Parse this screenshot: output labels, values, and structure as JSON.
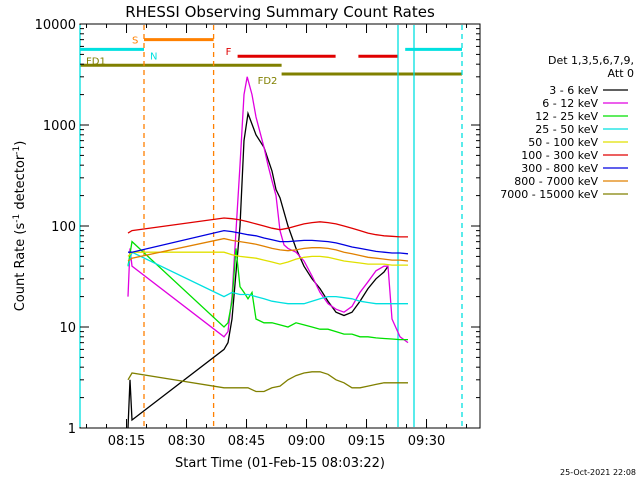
{
  "chart_data": {
    "type": "line",
    "title": "RHESSI Observing Summary Count Rates",
    "xlabel": "Start Time (01-Feb-15 08:03:22)",
    "ylabel": "Count Rate (s⁻¹ detector⁻¹)",
    "ylabel_parts": {
      "main": "Count Rate (s",
      "sup1": "-1",
      "mid": " detector",
      "sup2": "-1",
      "end": ")"
    },
    "footer": "25-Oct-2021 22:08",
    "y_scale": "log",
    "ylim": [
      1,
      10000
    ],
    "xlim_minutes": [
      0,
      100
    ],
    "yticks": [
      {
        "v": 1,
        "label": "1"
      },
      {
        "v": 10,
        "label": "10"
      },
      {
        "v": 100,
        "label": "100"
      },
      {
        "v": 1000,
        "label": "1000"
      },
      {
        "v": 10000,
        "label": "10000"
      }
    ],
    "xticks": [
      {
        "t": 11.63,
        "label": "08:15"
      },
      {
        "t": 26.63,
        "label": "08:30"
      },
      {
        "t": 41.63,
        "label": "08:45"
      },
      {
        "t": 56.63,
        "label": "09:00"
      },
      {
        "t": 71.63,
        "label": "09:15"
      },
      {
        "t": 86.63,
        "label": "09:30"
      }
    ],
    "legend_header": [
      "Det 1,3,5,6,7,9,",
      "Att 0"
    ],
    "series": [
      {
        "name": "3 - 6 keV",
        "color": "#000000",
        "points": [
          [
            12,
            1
          ],
          [
            12.5,
            3
          ],
          [
            13,
            1.2
          ],
          [
            36,
            6
          ],
          [
            37,
            7
          ],
          [
            38,
            12
          ],
          [
            40,
            100
          ],
          [
            41,
            700
          ],
          [
            42,
            1300
          ],
          [
            44,
            800
          ],
          [
            46,
            600
          ],
          [
            48,
            350
          ],
          [
            49,
            230
          ],
          [
            50,
            190
          ],
          [
            52,
            100
          ],
          [
            54,
            60
          ],
          [
            56,
            40
          ],
          [
            58,
            30
          ],
          [
            60,
            24
          ],
          [
            62,
            18
          ],
          [
            64,
            14
          ],
          [
            66,
            13
          ],
          [
            68,
            14
          ],
          [
            70,
            18
          ],
          [
            72,
            24
          ],
          [
            74,
            30
          ],
          [
            76,
            35
          ],
          [
            77,
            40
          ]
        ]
      },
      {
        "name": "6 - 12 keV",
        "color": "#e000e0",
        "points": [
          [
            12,
            20
          ],
          [
            12.5,
            60
          ],
          [
            13,
            40
          ],
          [
            36,
            8
          ],
          [
            37,
            9
          ],
          [
            38,
            20
          ],
          [
            40,
            400
          ],
          [
            41,
            2000
          ],
          [
            41.8,
            3000
          ],
          [
            43,
            2000
          ],
          [
            44,
            1200
          ],
          [
            46,
            600
          ],
          [
            47,
            400
          ],
          [
            48,
            280
          ],
          [
            49,
            200
          ],
          [
            50,
            90
          ],
          [
            51,
            65
          ],
          [
            52,
            60
          ],
          [
            54,
            55
          ],
          [
            56,
            45
          ],
          [
            58,
            32
          ],
          [
            60,
            22
          ],
          [
            62,
            17
          ],
          [
            64,
            15
          ],
          [
            66,
            14
          ],
          [
            68,
            16
          ],
          [
            70,
            22
          ],
          [
            72,
            28
          ],
          [
            74,
            36
          ],
          [
            76,
            40
          ],
          [
            77,
            40
          ],
          [
            78,
            12
          ],
          [
            80,
            8
          ],
          [
            82,
            7
          ]
        ]
      },
      {
        "name": "12 - 25 keV",
        "color": "#00e000",
        "points": [
          [
            12,
            40
          ],
          [
            13,
            70
          ],
          [
            36,
            10
          ],
          [
            37,
            11
          ],
          [
            38,
            18
          ],
          [
            39,
            60
          ],
          [
            40,
            25
          ],
          [
            41,
            22
          ],
          [
            42,
            19
          ],
          [
            43,
            22
          ],
          [
            44,
            12
          ],
          [
            46,
            11
          ],
          [
            48,
            11
          ],
          [
            50,
            10.5
          ],
          [
            52,
            10
          ],
          [
            54,
            11
          ],
          [
            56,
            10.5
          ],
          [
            58,
            10
          ],
          [
            60,
            9.5
          ],
          [
            62,
            9.5
          ],
          [
            64,
            9
          ],
          [
            66,
            8.5
          ],
          [
            68,
            8.5
          ],
          [
            70,
            8
          ],
          [
            72,
            8
          ],
          [
            74,
            7.8
          ],
          [
            76,
            7.7
          ],
          [
            78,
            7.6
          ],
          [
            80,
            7.5
          ],
          [
            82,
            7.5
          ]
        ]
      },
      {
        "name": "25 - 50 keV",
        "color": "#00e0e0",
        "points": [
          [
            12,
            40
          ],
          [
            13,
            55
          ],
          [
            36,
            20
          ],
          [
            38,
            22
          ],
          [
            40,
            21
          ],
          [
            42,
            21
          ],
          [
            44,
            20
          ],
          [
            46,
            19
          ],
          [
            48,
            18
          ],
          [
            50,
            17.5
          ],
          [
            52,
            17
          ],
          [
            54,
            17
          ],
          [
            56,
            17
          ],
          [
            58,
            18
          ],
          [
            60,
            19
          ],
          [
            62,
            20
          ],
          [
            64,
            20
          ],
          [
            66,
            19.5
          ],
          [
            68,
            19
          ],
          [
            70,
            18
          ],
          [
            72,
            17.5
          ],
          [
            74,
            17
          ],
          [
            76,
            17
          ],
          [
            78,
            17
          ],
          [
            80,
            17
          ],
          [
            82,
            17
          ]
        ]
      },
      {
        "name": "50 - 100 keV",
        "color": "#e0e000",
        "points": [
          [
            12,
            50
          ],
          [
            13,
            55
          ],
          [
            36,
            55
          ],
          [
            38,
            52
          ],
          [
            40,
            50
          ],
          [
            42,
            49
          ],
          [
            44,
            48
          ],
          [
            46,
            46
          ],
          [
            48,
            44
          ],
          [
            50,
            42
          ],
          [
            52,
            44
          ],
          [
            54,
            47
          ],
          [
            56,
            49
          ],
          [
            58,
            50
          ],
          [
            60,
            50
          ],
          [
            62,
            49
          ],
          [
            64,
            47
          ],
          [
            66,
            45
          ],
          [
            68,
            44
          ],
          [
            70,
            43
          ],
          [
            72,
            42
          ],
          [
            74,
            42
          ],
          [
            76,
            42
          ],
          [
            78,
            41
          ],
          [
            80,
            41
          ],
          [
            82,
            41
          ]
        ]
      },
      {
        "name": "100 - 300 keV",
        "color": "#e00000",
        "points": [
          [
            12,
            85
          ],
          [
            13,
            90
          ],
          [
            36,
            120
          ],
          [
            38,
            118
          ],
          [
            40,
            115
          ],
          [
            42,
            110
          ],
          [
            44,
            105
          ],
          [
            46,
            100
          ],
          [
            48,
            95
          ],
          [
            50,
            92
          ],
          [
            52,
            95
          ],
          [
            54,
            100
          ],
          [
            56,
            105
          ],
          [
            58,
            108
          ],
          [
            60,
            110
          ],
          [
            62,
            108
          ],
          [
            64,
            105
          ],
          [
            66,
            100
          ],
          [
            68,
            95
          ],
          [
            70,
            90
          ],
          [
            72,
            85
          ],
          [
            74,
            82
          ],
          [
            76,
            80
          ],
          [
            78,
            79
          ],
          [
            80,
            78
          ],
          [
            82,
            78
          ]
        ]
      },
      {
        "name": "300 - 800 keV",
        "color": "#0000e0",
        "points": [
          [
            12,
            55
          ],
          [
            13,
            55
          ],
          [
            36,
            90
          ],
          [
            38,
            88
          ],
          [
            40,
            85
          ],
          [
            42,
            82
          ],
          [
            44,
            80
          ],
          [
            46,
            76
          ],
          [
            48,
            73
          ],
          [
            50,
            70
          ],
          [
            52,
            70
          ],
          [
            54,
            71
          ],
          [
            56,
            72
          ],
          [
            58,
            72
          ],
          [
            60,
            71
          ],
          [
            62,
            70
          ],
          [
            64,
            68
          ],
          [
            66,
            65
          ],
          [
            68,
            62
          ],
          [
            70,
            60
          ],
          [
            72,
            58
          ],
          [
            74,
            56
          ],
          [
            76,
            55
          ],
          [
            78,
            54
          ],
          [
            80,
            54
          ],
          [
            82,
            53
          ]
        ]
      },
      {
        "name": "800 - 7000 keV",
        "color": "#e08000",
        "points": [
          [
            12,
            45
          ],
          [
            13,
            48
          ],
          [
            36,
            75
          ],
          [
            38,
            72
          ],
          [
            40,
            70
          ],
          [
            42,
            68
          ],
          [
            44,
            66
          ],
          [
            46,
            63
          ],
          [
            48,
            60
          ],
          [
            50,
            58
          ],
          [
            52,
            57
          ],
          [
            54,
            58
          ],
          [
            56,
            60
          ],
          [
            58,
            61
          ],
          [
            60,
            61
          ],
          [
            62,
            60
          ],
          [
            64,
            58
          ],
          [
            66,
            55
          ],
          [
            68,
            53
          ],
          [
            70,
            51
          ],
          [
            72,
            49
          ],
          [
            74,
            48
          ],
          [
            76,
            47
          ],
          [
            78,
            46
          ],
          [
            80,
            46
          ],
          [
            82,
            45
          ]
        ]
      },
      {
        "name": "7000 - 15000 keV",
        "color": "#808000",
        "points": [
          [
            12,
            3
          ],
          [
            13,
            3.5
          ],
          [
            36,
            2.5
          ],
          [
            38,
            2.5
          ],
          [
            40,
            2.5
          ],
          [
            42,
            2.5
          ],
          [
            44,
            2.3
          ],
          [
            46,
            2.3
          ],
          [
            48,
            2.5
          ],
          [
            50,
            2.6
          ],
          [
            52,
            3
          ],
          [
            54,
            3.3
          ],
          [
            56,
            3.5
          ],
          [
            58,
            3.6
          ],
          [
            60,
            3.6
          ],
          [
            62,
            3.4
          ],
          [
            64,
            3
          ],
          [
            66,
            2.8
          ],
          [
            68,
            2.5
          ],
          [
            70,
            2.5
          ],
          [
            72,
            2.6
          ],
          [
            74,
            2.7
          ],
          [
            76,
            2.8
          ],
          [
            78,
            2.8
          ],
          [
            80,
            2.8
          ],
          [
            82,
            2.8
          ]
        ]
      }
    ],
    "state_bars": [
      {
        "label": "S",
        "color": "#ff8000",
        "segments": [
          [
            16,
            33.4
          ]
        ],
        "value": 7000
      },
      {
        "label": "N",
        "color": "#00e0e0",
        "segments": [
          [
            0,
            16
          ],
          [
            81.3,
            95.5
          ]
        ],
        "value": 5600
      },
      {
        "label": "F",
        "color": "#e00000",
        "segments": [
          [
            39.4,
            63.9
          ],
          [
            69.6,
            79.4
          ]
        ],
        "value": 4800
      },
      {
        "label": "FD1",
        "color": "#808000",
        "segments": [
          [
            0,
            50.4
          ]
        ],
        "value": 3900
      },
      {
        "label": "FD2",
        "color": "#808000",
        "segments": [
          [
            50.4,
            95.5
          ]
        ],
        "value": 3200
      }
    ],
    "vlines": [
      {
        "t": 0,
        "color": "#00e0e0",
        "dashed": false
      },
      {
        "t": 16,
        "color": "#ff8000",
        "dashed": true
      },
      {
        "t": 33.4,
        "color": "#ff8000",
        "dashed": true
      },
      {
        "t": 79.5,
        "color": "#00e0e0",
        "dashed": false
      },
      {
        "t": 83.5,
        "color": "#00e0e0",
        "dashed": false
      },
      {
        "t": 95.5,
        "color": "#00e0e0",
        "dashed": true
      }
    ],
    "grid": false,
    "legend_position": "right"
  }
}
